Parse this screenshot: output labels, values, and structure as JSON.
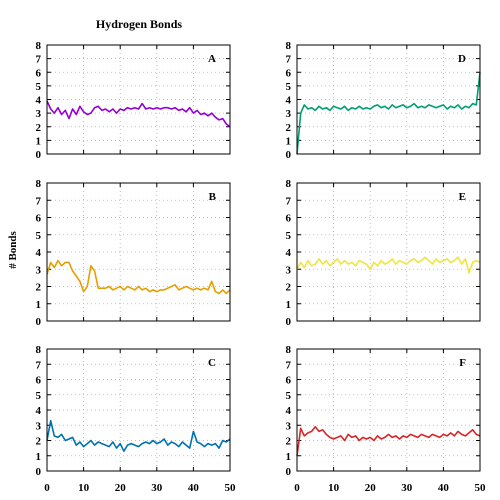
{
  "chart_data": {
    "type": "line",
    "title": "Hydrogen Bonds",
    "ylabel": "# Bonds",
    "xlabel": "",
    "xlim": [
      0,
      50
    ],
    "ylim": [
      0,
      8
    ],
    "xticks": [
      "0",
      "10",
      "20",
      "30",
      "40",
      "50"
    ],
    "yticks": [
      "0",
      "1",
      "2",
      "3",
      "4",
      "5",
      "6",
      "7",
      "8"
    ],
    "grid": true,
    "panels": [
      {
        "label": "A",
        "color": "#9400d3",
        "x": [
          0,
          1,
          2,
          3,
          4,
          5,
          6,
          7,
          8,
          9,
          10,
          11,
          12,
          13,
          14,
          15,
          16,
          17,
          18,
          19,
          20,
          21,
          22,
          23,
          24,
          25,
          26,
          27,
          28,
          29,
          30,
          31,
          32,
          33,
          34,
          35,
          36,
          37,
          38,
          39,
          40,
          41,
          42,
          43,
          44,
          45,
          46,
          47,
          48,
          49,
          50
        ],
        "y": [
          3.9,
          3.3,
          3.0,
          3.4,
          2.9,
          3.2,
          2.6,
          3.3,
          2.9,
          3.5,
          3.1,
          2.9,
          3.0,
          3.4,
          3.5,
          3.2,
          3.3,
          3.1,
          3.3,
          3.0,
          3.3,
          3.2,
          3.4,
          3.3,
          3.4,
          3.3,
          3.7,
          3.3,
          3.4,
          3.3,
          3.4,
          3.3,
          3.4,
          3.4,
          3.3,
          3.4,
          3.2,
          3.3,
          3.1,
          3.4,
          3.0,
          3.2,
          2.9,
          3.0,
          2.8,
          3.0,
          2.7,
          2.5,
          2.6,
          2.2,
          2.0
        ]
      },
      {
        "label": "B",
        "color": "#e69f00",
        "x": [
          0,
          1,
          2,
          3,
          4,
          5,
          6,
          7,
          8,
          9,
          10,
          11,
          12,
          13,
          14,
          15,
          16,
          17,
          18,
          19,
          20,
          21,
          22,
          23,
          24,
          25,
          26,
          27,
          28,
          29,
          30,
          31,
          32,
          33,
          34,
          35,
          36,
          37,
          38,
          39,
          40,
          41,
          42,
          43,
          44,
          45,
          46,
          47,
          48,
          49,
          50
        ],
        "y": [
          2.7,
          3.4,
          3.1,
          3.5,
          3.2,
          3.4,
          3.4,
          2.9,
          2.6,
          2.3,
          1.7,
          2.0,
          3.2,
          2.9,
          1.9,
          1.9,
          1.9,
          2.0,
          1.8,
          1.9,
          2.0,
          1.8,
          2.0,
          1.9,
          1.8,
          2.0,
          1.8,
          1.9,
          1.7,
          1.8,
          1.7,
          1.8,
          1.8,
          1.9,
          2.0,
          2.1,
          1.8,
          1.9,
          2.0,
          1.9,
          1.8,
          1.9,
          1.8,
          1.9,
          1.8,
          2.3,
          1.7,
          1.6,
          1.8,
          1.6,
          1.8
        ]
      },
      {
        "label": "C",
        "color": "#0072b2",
        "x": [
          0,
          1,
          2,
          3,
          4,
          5,
          6,
          7,
          8,
          9,
          10,
          11,
          12,
          13,
          14,
          15,
          16,
          17,
          18,
          19,
          20,
          21,
          22,
          23,
          24,
          25,
          26,
          27,
          28,
          29,
          30,
          31,
          32,
          33,
          34,
          35,
          36,
          37,
          38,
          39,
          40,
          41,
          42,
          43,
          44,
          45,
          46,
          47,
          48,
          49,
          50
        ],
        "y": [
          2.0,
          3.3,
          2.3,
          2.2,
          2.4,
          2.0,
          2.1,
          2.2,
          1.7,
          1.9,
          1.6,
          1.8,
          2.0,
          1.7,
          1.9,
          1.8,
          1.7,
          1.6,
          1.9,
          1.5,
          1.8,
          1.3,
          1.7,
          1.8,
          1.7,
          1.6,
          1.8,
          1.9,
          1.8,
          2.0,
          1.8,
          1.9,
          2.1,
          1.7,
          1.9,
          1.8,
          1.6,
          1.9,
          1.7,
          1.5,
          2.6,
          1.9,
          1.8,
          1.6,
          1.8,
          1.7,
          1.8,
          1.5,
          2.0,
          1.9,
          2.1
        ]
      },
      {
        "label": "D",
        "color": "#009e73",
        "x": [
          0,
          1,
          2,
          3,
          4,
          5,
          6,
          7,
          8,
          9,
          10,
          11,
          12,
          13,
          14,
          15,
          16,
          17,
          18,
          19,
          20,
          21,
          22,
          23,
          24,
          25,
          26,
          27,
          28,
          29,
          30,
          31,
          32,
          33,
          34,
          35,
          36,
          37,
          38,
          39,
          40,
          41,
          42,
          43,
          44,
          45,
          46,
          47,
          48,
          49,
          50
        ],
        "y": [
          0.0,
          3.0,
          3.6,
          3.3,
          3.4,
          3.2,
          3.5,
          3.3,
          3.4,
          3.2,
          3.5,
          3.4,
          3.3,
          3.5,
          3.2,
          3.4,
          3.3,
          3.5,
          3.3,
          3.4,
          3.3,
          3.5,
          3.6,
          3.4,
          3.5,
          3.3,
          3.6,
          3.4,
          3.5,
          3.6,
          3.4,
          3.5,
          3.7,
          3.4,
          3.5,
          3.4,
          3.6,
          3.5,
          3.4,
          3.5,
          3.6,
          3.3,
          3.5,
          3.4,
          3.6,
          3.3,
          3.5,
          3.4,
          3.7,
          3.6,
          6.0
        ]
      },
      {
        "label": "E",
        "color": "#f0e442",
        "x": [
          0,
          1,
          2,
          3,
          4,
          5,
          6,
          7,
          8,
          9,
          10,
          11,
          12,
          13,
          14,
          15,
          16,
          17,
          18,
          19,
          20,
          21,
          22,
          23,
          24,
          25,
          26,
          27,
          28,
          29,
          30,
          31,
          32,
          33,
          34,
          35,
          36,
          37,
          38,
          39,
          40,
          41,
          42,
          43,
          44,
          45,
          46,
          47,
          48,
          49,
          50
        ],
        "y": [
          3.0,
          3.4,
          3.1,
          3.5,
          3.2,
          3.3,
          3.6,
          3.3,
          3.5,
          3.2,
          3.4,
          3.6,
          3.3,
          3.5,
          3.3,
          3.4,
          3.2,
          3.5,
          3.4,
          3.3,
          3.0,
          3.4,
          3.2,
          3.5,
          3.3,
          3.4,
          3.6,
          3.3,
          3.5,
          3.4,
          3.3,
          3.5,
          3.6,
          3.4,
          3.5,
          3.7,
          3.5,
          3.3,
          3.6,
          3.4,
          3.5,
          3.6,
          3.4,
          3.5,
          3.7,
          3.3,
          3.6,
          2.8,
          3.4,
          3.5,
          3.4
        ]
      },
      {
        "label": "F",
        "color": "#d62728",
        "x": [
          0,
          1,
          2,
          3,
          4,
          5,
          6,
          7,
          8,
          9,
          10,
          11,
          12,
          13,
          14,
          15,
          16,
          17,
          18,
          19,
          20,
          21,
          22,
          23,
          24,
          25,
          26,
          27,
          28,
          29,
          30,
          31,
          32,
          33,
          34,
          35,
          36,
          37,
          38,
          39,
          40,
          41,
          42,
          43,
          44,
          45,
          46,
          47,
          48,
          49,
          50
        ],
        "y": [
          1.0,
          2.8,
          2.3,
          2.5,
          2.6,
          2.9,
          2.6,
          2.7,
          2.4,
          2.2,
          2.1,
          2.2,
          2.3,
          2.0,
          2.4,
          2.2,
          2.3,
          2.0,
          2.2,
          2.1,
          2.2,
          2.0,
          2.3,
          2.1,
          2.2,
          2.4,
          2.2,
          2.3,
          2.1,
          2.3,
          2.2,
          2.4,
          2.3,
          2.2,
          2.4,
          2.3,
          2.2,
          2.4,
          2.3,
          2.2,
          2.4,
          2.3,
          2.5,
          2.3,
          2.6,
          2.4,
          2.3,
          2.5,
          2.7,
          2.4,
          2.3
        ]
      }
    ]
  }
}
